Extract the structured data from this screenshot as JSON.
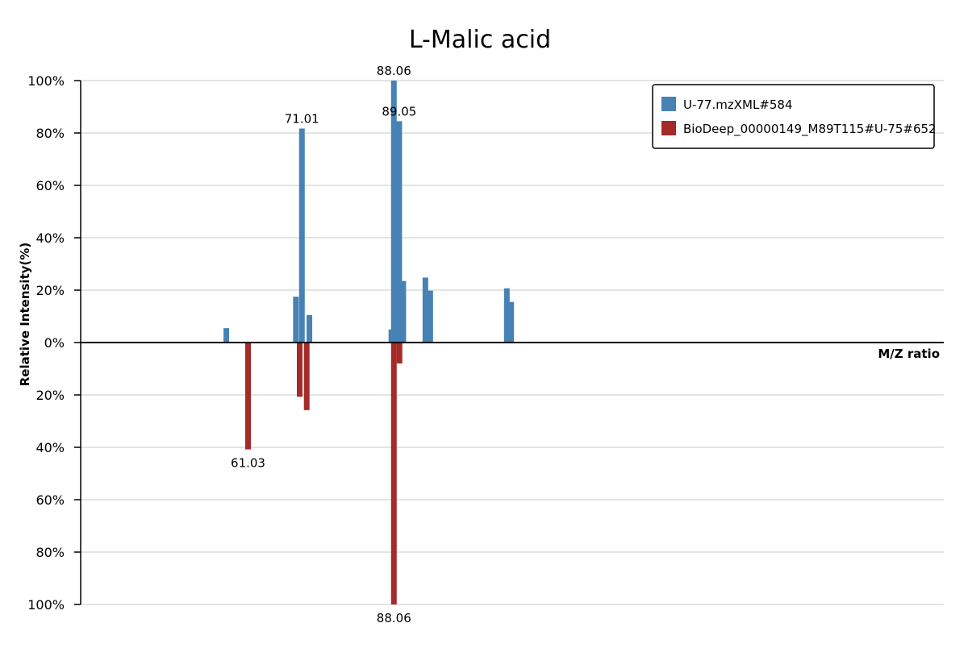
{
  "chart_data": {
    "type": "bar",
    "title": "L-Malic acid",
    "xlabel": "M/Z ratio",
    "ylabel": "Relative Intensity(%)",
    "ylim": [
      -100,
      100
    ],
    "xlim": [
      30,
      190
    ],
    "grid": true,
    "legend_position": "top-right",
    "y_tick_labels": [
      "100%",
      "80%",
      "60%",
      "40%",
      "20%",
      "0%",
      "20%",
      "40%",
      "60%",
      "80%",
      "100%"
    ],
    "series": [
      {
        "name": "U-77.mzXML#584",
        "color": "#4682B4",
        "direction": "up",
        "points": [
          {
            "mz": 57.0,
            "intensity": 5.5
          },
          {
            "mz": 69.9,
            "intensity": 17.5
          },
          {
            "mz": 71.01,
            "intensity": 81.7,
            "label": "71.01"
          },
          {
            "mz": 72.4,
            "intensity": 10.5
          },
          {
            "mz": 87.6,
            "intensity": 5.0
          },
          {
            "mz": 88.06,
            "intensity": 100.0,
            "label": "88.06"
          },
          {
            "mz": 89.05,
            "intensity": 84.5,
            "label": "89.05"
          },
          {
            "mz": 89.8,
            "intensity": 23.5
          },
          {
            "mz": 93.9,
            "intensity": 24.8
          },
          {
            "mz": 94.8,
            "intensity": 19.8
          },
          {
            "mz": 109.0,
            "intensity": 20.7
          },
          {
            "mz": 109.8,
            "intensity": 15.5
          }
        ]
      },
      {
        "name": "BioDeep_00000149_M89T115#U-75#652",
        "color": "#A52A2A",
        "direction": "down",
        "points": [
          {
            "mz": 61.03,
            "intensity": 40.8,
            "label": "61.03"
          },
          {
            "mz": 70.6,
            "intensity": 20.7
          },
          {
            "mz": 71.9,
            "intensity": 25.8
          },
          {
            "mz": 88.06,
            "intensity": 100.0,
            "label": "88.06"
          },
          {
            "mz": 89.1,
            "intensity": 8.0
          }
        ]
      }
    ]
  }
}
